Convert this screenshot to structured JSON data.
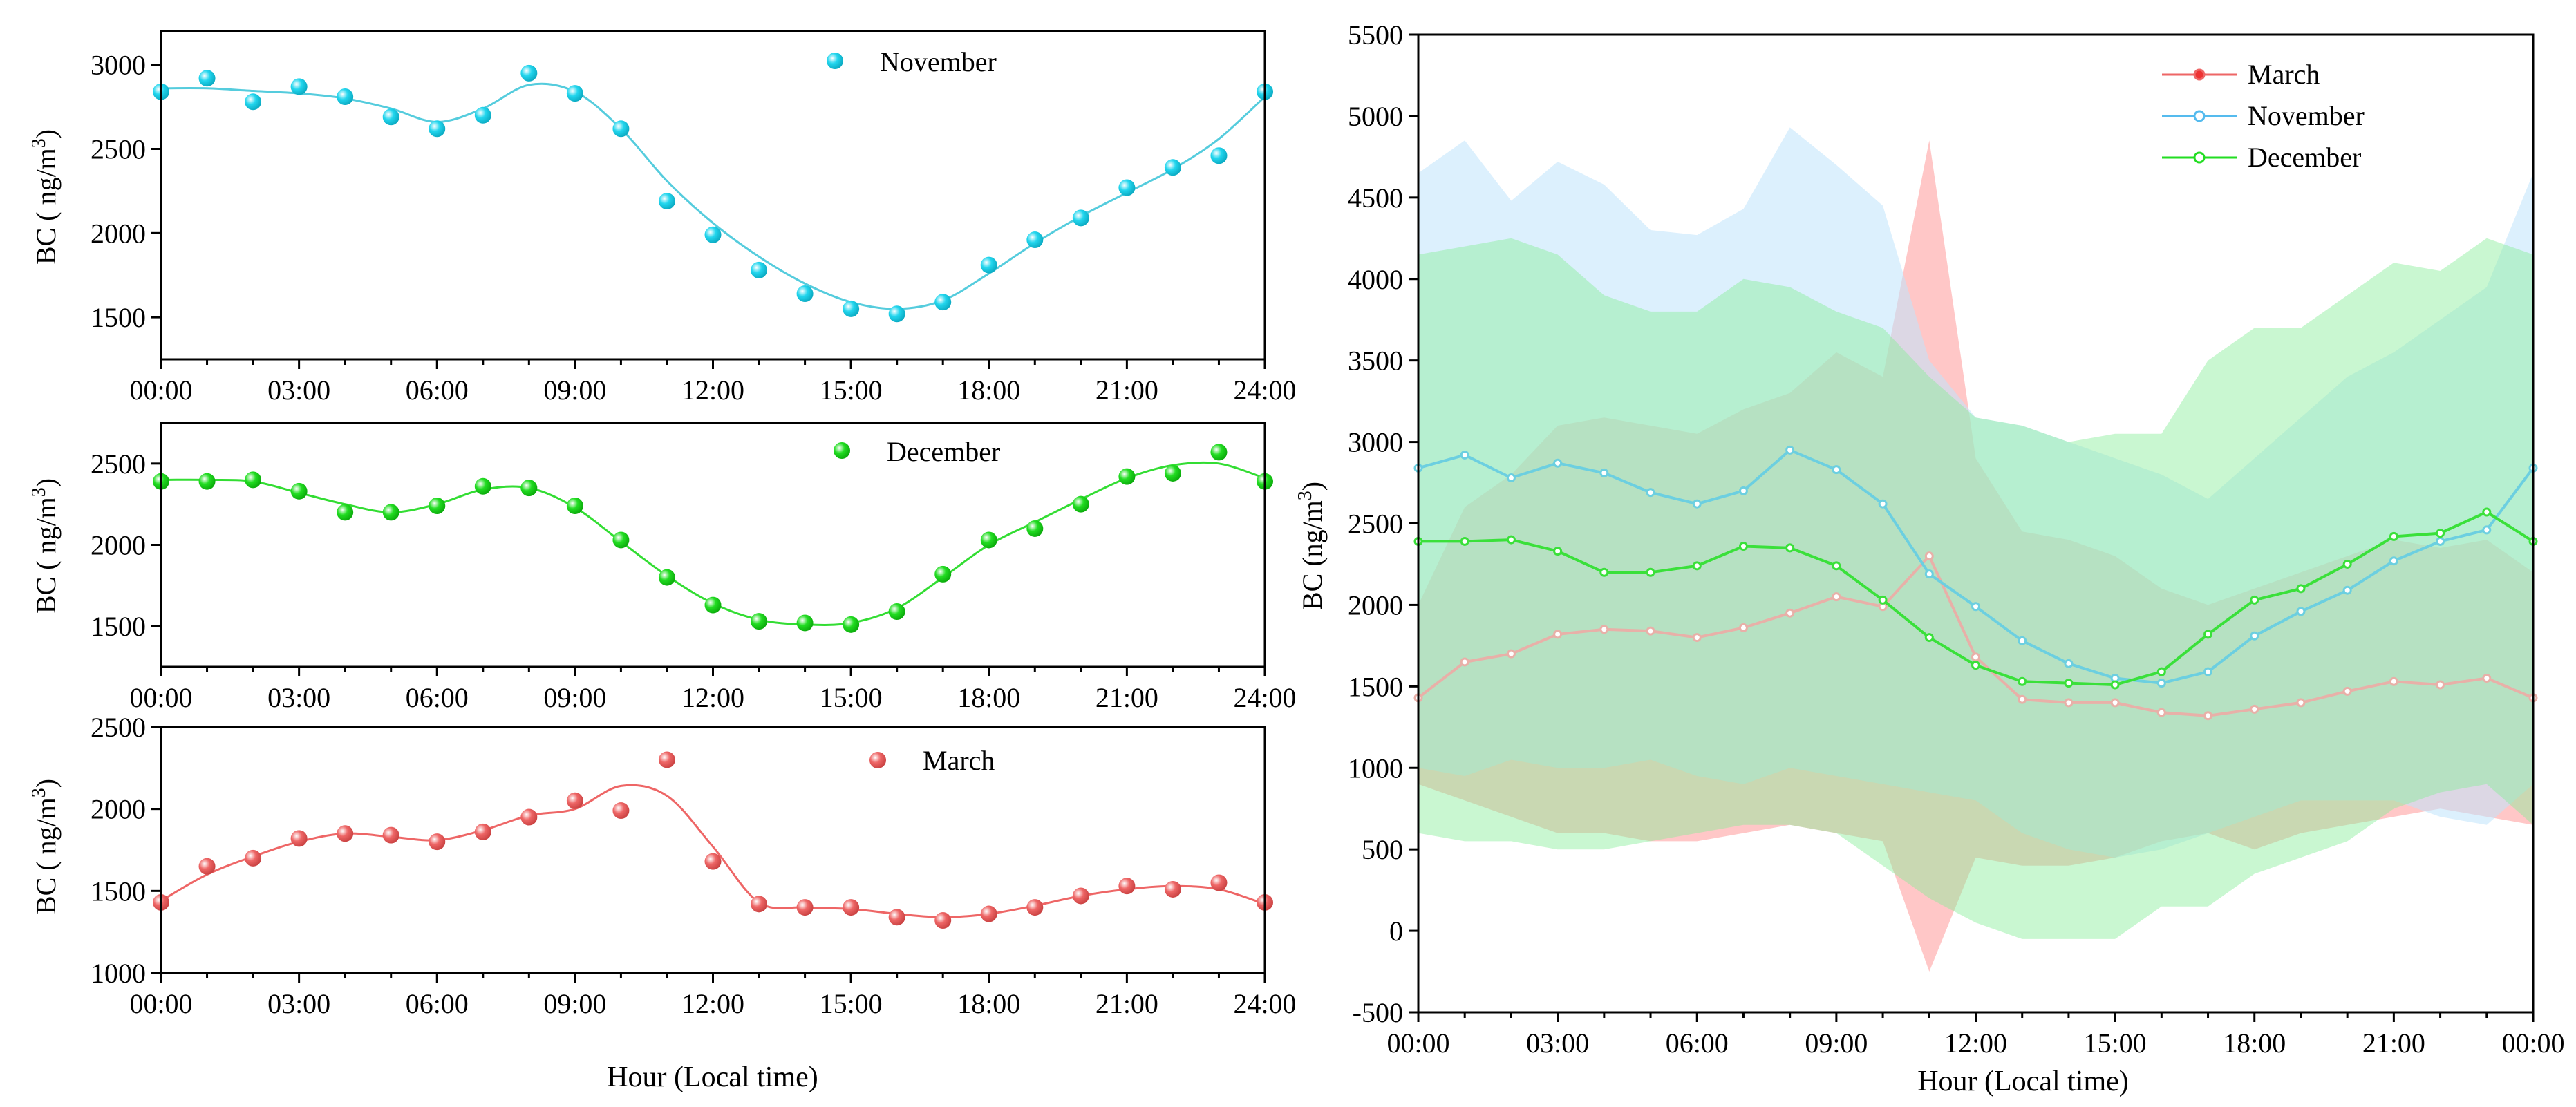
{
  "colors": {
    "march": "#ee6666",
    "november": "#55ccdd",
    "december": "#33dd33",
    "november_marker": "#22d6ee",
    "december_marker": "#22dd22",
    "march_marker": "#ee6666",
    "band_march": "#ff9999",
    "band_november": "#bfe3fb",
    "band_december": "#88ee99"
  },
  "chart_data": [
    {
      "type": "scatter",
      "panel": "November",
      "ylabel": "BC ( ng/m",
      "ylabel_sup": "3",
      "ylabel_end": ")",
      "ylim": [
        1250,
        3200
      ],
      "yticks": [
        1500,
        2000,
        2500,
        3000
      ],
      "xlim": [
        0,
        24
      ],
      "xticks": [
        "00:00",
        "03:00",
        "06:00",
        "09:00",
        "12:00",
        "15:00",
        "18:00",
        "21:00",
        "24:00"
      ],
      "legend": "November",
      "legend_position": "top-center",
      "x": [
        0,
        1,
        2,
        3,
        4,
        5,
        6,
        7,
        8,
        9,
        10,
        11,
        12,
        13,
        14,
        15,
        16,
        17,
        18,
        19,
        20,
        21,
        22,
        23,
        24
      ],
      "points": [
        2840,
        2920,
        2780,
        2870,
        2810,
        2690,
        2620,
        2700,
        2950,
        2830,
        2620,
        2190,
        1990,
        1780,
        1640,
        1550,
        1520,
        1590,
        1810,
        1960,
        2090,
        2270,
        2390,
        2460,
        2840
      ],
      "fit": [
        2860,
        2860,
        2845,
        2830,
        2800,
        2740,
        2660,
        2740,
        2880,
        2840,
        2620,
        2310,
        2060,
        1860,
        1700,
        1590,
        1550,
        1600,
        1760,
        1940,
        2100,
        2240,
        2380,
        2560,
        2810
      ]
    },
    {
      "type": "scatter",
      "panel": "December",
      "ylabel": "BC ( ng/m",
      "ylabel_sup": "3",
      "ylabel_end": ")",
      "ylim": [
        1250,
        2750
      ],
      "yticks": [
        1500,
        2000,
        2500
      ],
      "xlim": [
        0,
        24
      ],
      "xticks": [
        "00:00",
        "03:00",
        "06:00",
        "09:00",
        "12:00",
        "15:00",
        "18:00",
        "21:00",
        "24:00"
      ],
      "legend": "December",
      "legend_position": "top-center",
      "x": [
        0,
        1,
        2,
        3,
        4,
        5,
        6,
        7,
        8,
        9,
        10,
        11,
        12,
        13,
        14,
        15,
        16,
        17,
        18,
        19,
        20,
        21,
        22,
        23,
        24
      ],
      "points": [
        2390,
        2390,
        2400,
        2330,
        2200,
        2200,
        2240,
        2360,
        2350,
        2240,
        2030,
        1800,
        1630,
        1530,
        1520,
        1510,
        1590,
        1820,
        2030,
        2100,
        2250,
        2420,
        2440,
        2570,
        2390
      ],
      "fit": [
        2400,
        2400,
        2390,
        2320,
        2250,
        2200,
        2250,
        2340,
        2350,
        2230,
        2020,
        1810,
        1640,
        1540,
        1510,
        1520,
        1610,
        1800,
        2000,
        2140,
        2280,
        2410,
        2490,
        2500,
        2410
      ]
    },
    {
      "type": "scatter",
      "panel": "March",
      "ylabel": "BC ( ng/m",
      "ylabel_sup": "3",
      "ylabel_end": ")",
      "ylim": [
        1000,
        2500
      ],
      "yticks": [
        1000,
        1500,
        2000,
        2500
      ],
      "xlim": [
        0,
        24
      ],
      "xticks": [
        "00:00",
        "03:00",
        "06:00",
        "09:00",
        "12:00",
        "15:00",
        "18:00",
        "21:00",
        "24:00"
      ],
      "xlabel": "Hour (Local time)",
      "legend": "March",
      "legend_position": "top-center",
      "x": [
        0,
        1,
        2,
        3,
        4,
        5,
        6,
        7,
        8,
        9,
        10,
        11,
        12,
        13,
        14,
        15,
        16,
        17,
        18,
        19,
        20,
        21,
        22,
        23,
        24
      ],
      "points": [
        1430,
        1650,
        1700,
        1820,
        1850,
        1840,
        1800,
        1860,
        1950,
        2050,
        1990,
        2300,
        1680,
        1420,
        1400,
        1400,
        1340,
        1320,
        1360,
        1400,
        1470,
        1530,
        1510,
        1550,
        1430
      ],
      "fit": [
        1440,
        1600,
        1710,
        1800,
        1850,
        1830,
        1810,
        1870,
        1960,
        2000,
        2140,
        2080,
        1770,
        1430,
        1400,
        1390,
        1360,
        1340,
        1360,
        1410,
        1470,
        1510,
        1530,
        1510,
        1420
      ]
    },
    {
      "type": "area",
      "ylabel": "BC (ng/m",
      "ylabel_sup": "3",
      "ylabel_end": ")",
      "xlabel": "Hour (Local time)",
      "ylim": [
        -500,
        5500
      ],
      "yticks": [
        -500,
        0,
        500,
        1000,
        1500,
        2000,
        2500,
        3000,
        3500,
        4000,
        4500,
        5000,
        5500
      ],
      "xlim": [
        0,
        24
      ],
      "xticks": [
        "00:00",
        "03:00",
        "06:00",
        "09:00",
        "12:00",
        "15:00",
        "18:00",
        "21:00",
        "00:00"
      ],
      "legend_position": "top-center",
      "x": [
        0,
        1,
        2,
        3,
        4,
        5,
        6,
        7,
        8,
        9,
        10,
        11,
        12,
        13,
        14,
        15,
        16,
        17,
        18,
        19,
        20,
        21,
        22,
        23,
        24
      ],
      "series": [
        {
          "name": "March",
          "values": [
            1430,
            1650,
            1700,
            1820,
            1850,
            1840,
            1800,
            1860,
            1950,
            2050,
            1990,
            2300,
            1680,
            1420,
            1400,
            1400,
            1340,
            1320,
            1360,
            1400,
            1470,
            1530,
            1510,
            1550,
            1430
          ],
          "upper": [
            2000,
            2600,
            2800,
            3100,
            3150,
            3100,
            3050,
            3200,
            3300,
            3550,
            3400,
            4850,
            2900,
            2450,
            2400,
            2300,
            2100,
            2000,
            2100,
            2200,
            2300,
            2400,
            2350,
            2400,
            2200
          ],
          "lower": [
            900,
            800,
            700,
            600,
            600,
            550,
            550,
            600,
            650,
            600,
            550,
            -250,
            450,
            400,
            400,
            450,
            550,
            600,
            500,
            600,
            650,
            700,
            750,
            700,
            650
          ]
        },
        {
          "name": "November",
          "values": [
            2840,
            2920,
            2780,
            2870,
            2810,
            2690,
            2620,
            2700,
            2950,
            2830,
            2620,
            2190,
            1990,
            1780,
            1640,
            1550,
            1520,
            1590,
            1810,
            1960,
            2090,
            2270,
            2390,
            2460,
            2840
          ],
          "upper": [
            4650,
            4850,
            4480,
            4720,
            4580,
            4300,
            4270,
            4430,
            4930,
            4700,
            4450,
            3500,
            3150,
            3100,
            3000,
            2900,
            2800,
            2650,
            2900,
            3150,
            3400,
            3550,
            3750,
            3950,
            4650
          ],
          "lower": [
            1000,
            950,
            1050,
            1000,
            1000,
            1050,
            950,
            900,
            1000,
            950,
            900,
            850,
            800,
            600,
            500,
            450,
            500,
            600,
            700,
            800,
            800,
            800,
            700,
            650,
            900
          ]
        },
        {
          "name": "December",
          "values": [
            2390,
            2390,
            2400,
            2330,
            2200,
            2200,
            2240,
            2360,
            2350,
            2240,
            2030,
            1800,
            1630,
            1530,
            1520,
            1510,
            1590,
            1820,
            2030,
            2100,
            2250,
            2420,
            2440,
            2570,
            2390
          ],
          "upper": [
            4150,
            4200,
            4250,
            4150,
            3900,
            3800,
            3800,
            4000,
            3950,
            3800,
            3700,
            3400,
            3150,
            3100,
            3000,
            3050,
            3050,
            3500,
            3700,
            3700,
            3900,
            4100,
            4050,
            4250,
            4150
          ],
          "lower": [
            600,
            550,
            550,
            500,
            500,
            550,
            600,
            650,
            650,
            600,
            400,
            200,
            50,
            -50,
            -50,
            -50,
            150,
            150,
            350,
            450,
            550,
            750,
            850,
            900,
            650
          ]
        }
      ]
    }
  ]
}
